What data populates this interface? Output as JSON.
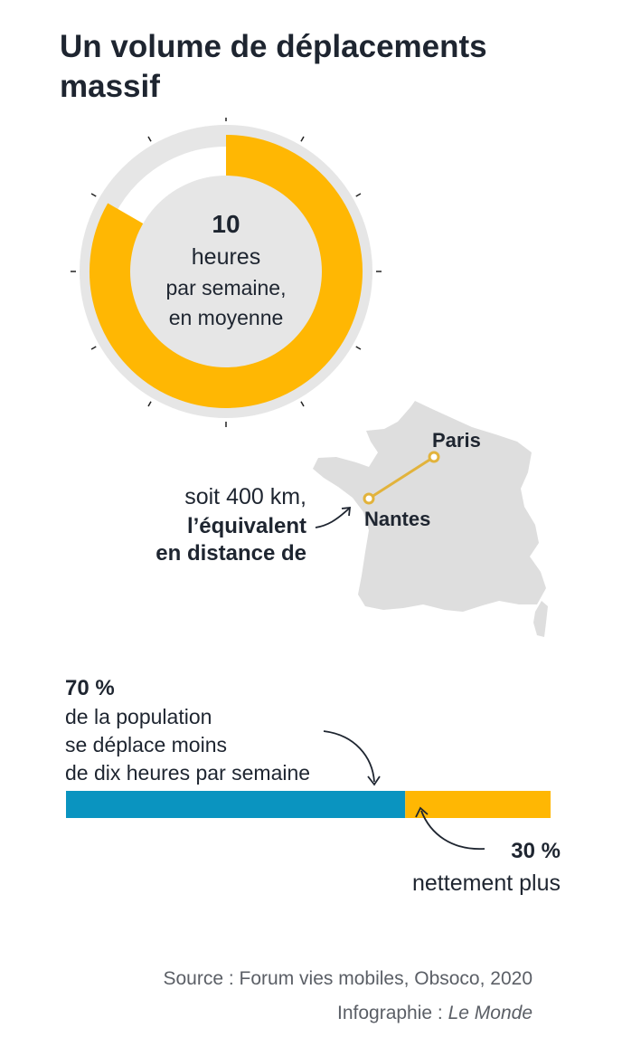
{
  "title": "Un volume de déplacements massif",
  "colors": {
    "accent": "#FFB703",
    "blue": "#0A94C0",
    "grey_track": "#E6E6E6",
    "map_grey": "#DEDEDE",
    "route": "#E2B33C",
    "text": "#1E2530",
    "source_text": "#5B5F66"
  },
  "donut": {
    "value_label": "10",
    "line1": "heures",
    "line2": "par semaine,",
    "line3": "en moyenne"
  },
  "distance": {
    "line1": "soit 400 km,",
    "line2": "l’équivalent",
    "line3": "en distance de",
    "city_a": "Paris",
    "city_b": "Nantes"
  },
  "bar": {
    "left_pct_label": "70 %",
    "left_desc": [
      "de la population",
      "se déplace moins",
      "de dix heures par semaine"
    ],
    "right_pct_label": "30 %",
    "right_desc": "nettement plus"
  },
  "source": {
    "line1": "Source : Forum vies mobiles, Obsoco, 2020",
    "credit_prefix": "Infographie : ",
    "credit_name": "Le Monde"
  },
  "chart_data": [
    {
      "type": "pie",
      "values": [
        10
      ],
      "full_scale": 12,
      "note": "heures par semaine, en moyenne"
    },
    {
      "type": "bar",
      "categories": [
        "moins de dix heures par semaine",
        "nettement plus"
      ],
      "values": [
        70,
        30
      ],
      "unit": "%"
    }
  ]
}
